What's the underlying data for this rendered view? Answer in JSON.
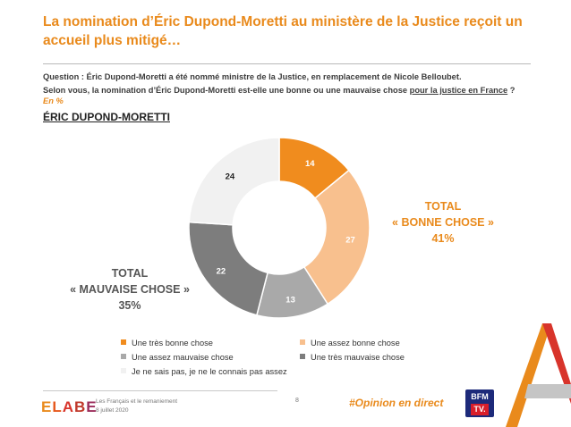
{
  "title": "La nomination d’Éric Dupond-Moretti au ministère de la Justice reçoit un accueil plus mitigé…",
  "question": {
    "line1": "Question : Éric Dupond-Moretti a été nommé ministre de la Justice, en remplacement de Nicole Belloubet.",
    "line2_before": "Selon vous, la nomination d’Éric Dupond-Moretti est-elle une bonne ou une mauvaise chose ",
    "line2_underlined": "pour la justice en France",
    "line2_after": " ?",
    "unit": "En %"
  },
  "subject": "ÉRIC DUPOND-MORETTI",
  "totals": {
    "good_label_1": "TOTAL",
    "good_label_2": "« BONNE CHOSE »",
    "good_value": "41%",
    "bad_label_1": "TOTAL",
    "bad_label_2": "« MAUVAISE CHOSE »",
    "bad_value": "35%"
  },
  "chart_data": {
    "type": "pie",
    "donut": true,
    "slices": [
      {
        "label": "Une très bonne chose",
        "value": 14,
        "color": "#f08c1e"
      },
      {
        "label": "Une assez bonne chose",
        "value": 27,
        "color": "#f8c08e"
      },
      {
        "label": "Une assez mauvaise chose",
        "value": 13,
        "color": "#a9a9a9"
      },
      {
        "label": "Une très mauvaise chose",
        "value": 22,
        "color": "#7d7d7d"
      },
      {
        "label": "Je ne sais pas, je ne le connais pas assez",
        "value": 24,
        "color": "#f1f1f1"
      }
    ]
  },
  "footer": {
    "logo": "ELABE",
    "source_line1": "Les Français et le remaniement",
    "source_line2": "8 juillet 2020",
    "page": "8",
    "hashtag": "#Opinion en direct",
    "bfm_top": "BFM",
    "bfm_bottom": "TV."
  }
}
